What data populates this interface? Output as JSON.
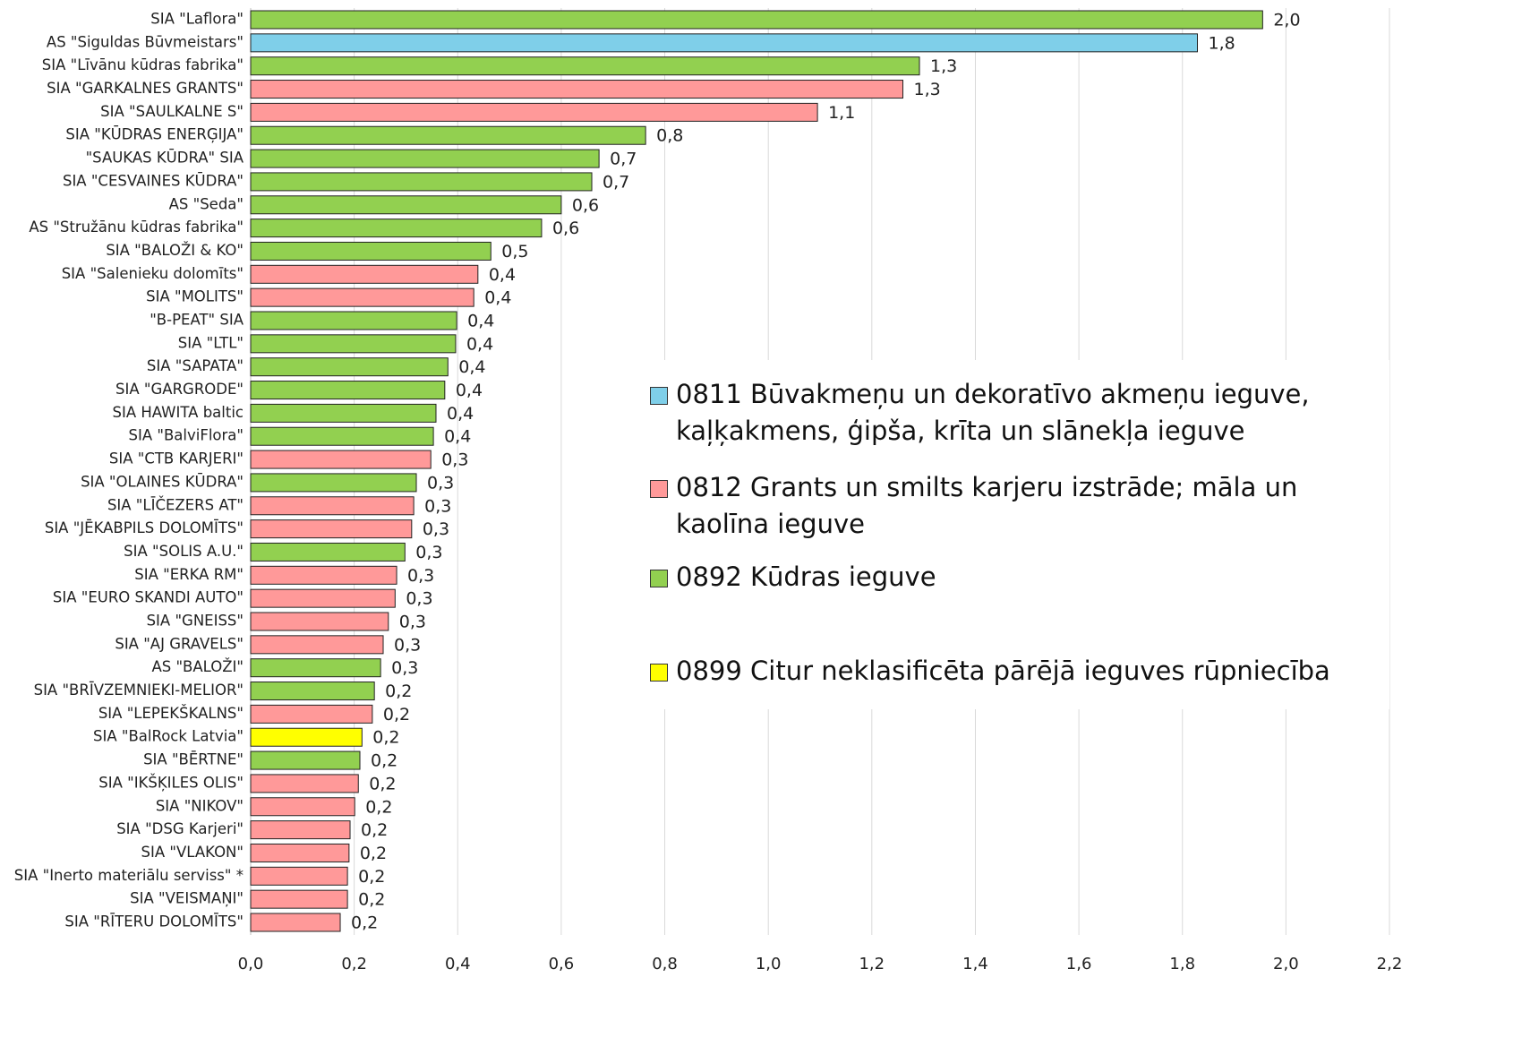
{
  "chart_data": {
    "type": "bar",
    "orientation": "horizontal",
    "categories": [
      "SIA \"Laflora\"",
      "AS \"Siguldas Būvmeistars\"",
      "SIA \"Līvānu kūdras fabrika\"",
      "SIA \"GARKALNES GRANTS\"",
      "SIA \"SAULKALNE S\"",
      "SIA \"KŪDRAS ENERĢIJA\"",
      "\"SAUKAS KŪDRA\" SIA",
      "SIA \"CESVAINES KŪDRA\"",
      "AS \"Seda\"",
      "AS \"Stružānu kūdras fabrika\"",
      "SIA \"BALOŽI & KO\"",
      "SIA \"Salenieku dolomīts\"",
      "SIA \"MOLITS\"",
      "\"B-PEAT\" SIA",
      "SIA \"LTL\"",
      "SIA \"SAPATA\"",
      "SIA \"GARGRODE\"",
      "SIA HAWITA baltic",
      "SIA \"BalviFlora\"",
      "SIA \"CTB KARJERI\"",
      "SIA \"OLAINES KŪDRA\"",
      "SIA \"LĪČEZERS AT\"",
      "SIA \"JĒKABPILS DOLOMĪTS\"",
      "SIA \"SOLIS A.U.\"",
      "SIA \"ERKA RM\"",
      "SIA \"EURO SKANDI AUTO\"",
      "SIA \"GNEISS\"",
      "SIA \"AJ GRAVELS\"",
      "AS \"BALOŽI\"",
      "SIA \"BRĪVZEMNIEKI-MELIOR\"",
      "SIA \"LEPEKŠKALNS\"",
      "SIA \"BalRock Latvia\"",
      "SIA \"BĒRTNE\"",
      "SIA \"IKŠĶILES OLIS\"",
      "SIA \"NIKOV\"",
      "SIA \"DSG Karjeri\"",
      "SIA \"VLAKON\"",
      "SIA \"Inerto materiālu serviss\" *",
      "SIA \"VEISMAŅI\"",
      "SIA \"RĪTERU DOLOMĪTS\""
    ],
    "values": [
      1.955,
      1.829,
      1.292,
      1.26,
      1.095,
      0.763,
      0.673,
      0.659,
      0.6,
      0.562,
      0.464,
      0.439,
      0.431,
      0.398,
      0.396,
      0.381,
      0.375,
      0.358,
      0.353,
      0.348,
      0.32,
      0.315,
      0.311,
      0.298,
      0.282,
      0.279,
      0.266,
      0.256,
      0.251,
      0.239,
      0.235,
      0.215,
      0.211,
      0.208,
      0.201,
      0.192,
      0.19,
      0.187,
      0.187,
      0.173
    ],
    "value_labels": [
      "2,0",
      "1,8",
      "1,3",
      "1,3",
      "1,1",
      "0,8",
      "0,7",
      "0,7",
      "0,6",
      "0,6",
      "0,5",
      "0,4",
      "0,4",
      "0,4",
      "0,4",
      "0,4",
      "0,4",
      "0,4",
      "0,4",
      "0,3",
      "0,3",
      "0,3",
      "0,3",
      "0,3",
      "0,3",
      "0,3",
      "0,3",
      "0,3",
      "0,3",
      "0,2",
      "0,2",
      "0,2",
      "0,2",
      "0,2",
      "0,2",
      "0,2",
      "0,2",
      "0,2",
      "0,2",
      "0,2"
    ],
    "colors": [
      "#92d050",
      "#7fcfe9",
      "#92d050",
      "#ff9999",
      "#ff9999",
      "#92d050",
      "#92d050",
      "#92d050",
      "#92d050",
      "#92d050",
      "#92d050",
      "#ff9999",
      "#ff9999",
      "#92d050",
      "#92d050",
      "#92d050",
      "#92d050",
      "#92d050",
      "#92d050",
      "#ff9999",
      "#92d050",
      "#ff9999",
      "#ff9999",
      "#92d050",
      "#ff9999",
      "#ff9999",
      "#ff9999",
      "#ff9999",
      "#92d050",
      "#92d050",
      "#ff9999",
      "#ffff00",
      "#92d050",
      "#ff9999",
      "#ff9999",
      "#ff9999",
      "#ff9999",
      "#ff9999",
      "#ff9999",
      "#ff9999"
    ],
    "legend": [
      {
        "name": "0811 Būvakmeņu un dekoratīvo akmeņu ieguve, kaļķakmens, ģipša, krīta un slānekļa ieguve",
        "color": "#7fcfe9"
      },
      {
        "name": "0812 Grants un smilts karjeru izstrāde; māla un kaolīna ieguve",
        "color": "#ff9999"
      },
      {
        "name": "0892 Kūdras ieguve",
        "color": "#92d050"
      },
      {
        "name": "0899 Citur neklasificēta pārējā ieguves rūpniecība",
        "color": "#ffff00"
      }
    ],
    "xlim": [
      0,
      2.2
    ],
    "xticks": [
      {
        "value": 0,
        "label": "0,0"
      },
      {
        "value": 0.2,
        "label": "0,2"
      },
      {
        "value": 0.4,
        "label": "0,4"
      },
      {
        "value": 0.6,
        "label": "0,6"
      },
      {
        "value": 0.8,
        "label": "0,8"
      },
      {
        "value": 1.0,
        "label": "1,0"
      },
      {
        "value": 1.2,
        "label": "1,2"
      },
      {
        "value": 1.4,
        "label": "1,4"
      },
      {
        "value": 1.6,
        "label": "1,6"
      },
      {
        "value": 1.8,
        "label": "1,8"
      },
      {
        "value": 2.0,
        "label": "2,0"
      },
      {
        "value": 2.2,
        "label": "2,2"
      }
    ],
    "grid": true
  }
}
